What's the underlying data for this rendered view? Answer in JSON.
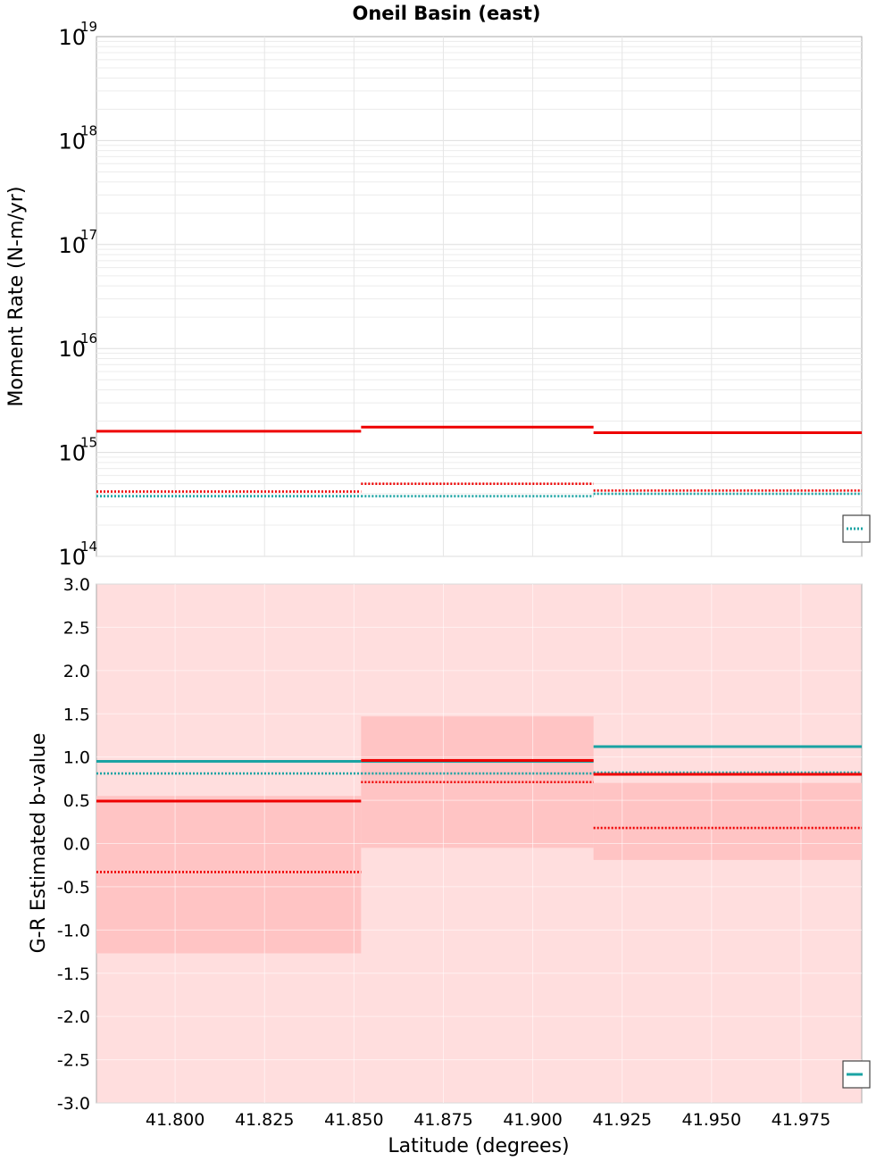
{
  "chart_data": [
    {
      "type": "line",
      "subtype": "step",
      "title": "Oneil Basin (east)",
      "ylabel": "Moment Rate (N-m/yr)",
      "xlabel": "",
      "yscale": "log",
      "xlim": [
        41.778,
        41.992
      ],
      "ylim": [
        100000000000000.0,
        1e+19
      ],
      "ytick_labels": [
        {
          "base": "10",
          "exp": "14",
          "value": 100000000000000.0
        },
        {
          "base": "10",
          "exp": "15",
          "value": 1000000000000000.0
        },
        {
          "base": "10",
          "exp": "16",
          "value": 1e+16
        },
        {
          "base": "10",
          "exp": "17",
          "value": 1e+17
        },
        {
          "base": "10",
          "exp": "18",
          "value": 1e+18
        },
        {
          "base": "10",
          "exp": "19",
          "value": 1e+19
        }
      ],
      "grid": true,
      "legend": "bottom-right (partially clipped)",
      "series": [
        {
          "name": "red solid",
          "color": "#ee0000",
          "style": "solid",
          "segments": [
            [
              41.778,
              41.852,
              1600000000000000.0
            ],
            [
              41.852,
              41.917,
              1750000000000000.0
            ],
            [
              41.917,
              41.992,
              1550000000000000.0
            ]
          ]
        },
        {
          "name": "red dotted",
          "color": "#ee0000",
          "style": "dotted",
          "segments": [
            [
              41.778,
              41.852,
              420000000000000.0
            ],
            [
              41.852,
              41.917,
              500000000000000.0
            ],
            [
              41.917,
              41.992,
              430000000000000.0
            ]
          ]
        },
        {
          "name": "teal dotted",
          "color": "#1aa3a3",
          "style": "dotted",
          "segments": [
            [
              41.778,
              41.852,
              380000000000000.0
            ],
            [
              41.852,
              41.917,
              380000000000000.0
            ],
            [
              41.917,
              41.992,
              400000000000000.0
            ]
          ]
        }
      ]
    },
    {
      "type": "line",
      "subtype": "step",
      "title": "",
      "xlabel": "Latitude (degrees)",
      "ylabel": "G-R Estimated b-value",
      "xlim": [
        41.778,
        41.992
      ],
      "ylim": [
        -3.0,
        3.0
      ],
      "xticks": [
        41.8,
        41.825,
        41.85,
        41.875,
        41.9,
        41.925,
        41.95,
        41.975
      ],
      "xtick_labels": [
        "41.800",
        "41.825",
        "41.850",
        "41.875",
        "41.900",
        "41.925",
        "41.950",
        "41.975"
      ],
      "yticks": [
        3.0,
        2.5,
        2.0,
        1.5,
        1.0,
        0.5,
        0.0,
        -0.5,
        -1.0,
        -1.5,
        -2.0,
        -2.5,
        -3.0
      ],
      "ytick_labels": [
        "3.0",
        "2.5",
        "2.0",
        "1.5",
        "1.0",
        "0.5",
        "0.0",
        "-0.5",
        "-1.0",
        "-1.5",
        "-2.0",
        "-2.5",
        "-3.0"
      ],
      "grid": true,
      "legend": "bottom-right (partially clipped)",
      "background_fill": {
        "color": "#ffdede",
        "range": [
          -3.0,
          3.0
        ]
      },
      "bands": [
        {
          "x0": 41.778,
          "x1": 41.852,
          "low": -1.27,
          "high": 0.55,
          "color": "#ffc4c4"
        },
        {
          "x0": 41.852,
          "x1": 41.917,
          "low": -0.05,
          "high": 1.47,
          "color": "#ffc4c4"
        },
        {
          "x0": 41.917,
          "x1": 41.992,
          "low": -0.19,
          "high": 0.7,
          "color": "#ffc4c4"
        }
      ],
      "series": [
        {
          "name": "teal solid",
          "color": "#1aa3a3",
          "style": "solid",
          "segments": [
            [
              41.778,
              41.852,
              0.95
            ],
            [
              41.852,
              41.917,
              0.95
            ],
            [
              41.917,
              41.992,
              1.12
            ]
          ]
        },
        {
          "name": "teal dotted",
          "color": "#1aa3a3",
          "style": "dotted",
          "segments": [
            [
              41.778,
              41.852,
              0.81
            ],
            [
              41.852,
              41.917,
              0.81
            ],
            [
              41.917,
              41.992,
              0.82
            ]
          ]
        },
        {
          "name": "red solid",
          "color": "#ee0000",
          "style": "solid",
          "segments": [
            [
              41.778,
              41.852,
              0.49
            ],
            [
              41.852,
              41.917,
              0.96
            ],
            [
              41.917,
              41.992,
              0.8
            ]
          ]
        },
        {
          "name": "red dotted",
          "color": "#ee0000",
          "style": "dotted",
          "segments": [
            [
              41.778,
              41.852,
              -0.33
            ],
            [
              41.852,
              41.917,
              0.71
            ],
            [
              41.917,
              41.992,
              0.18
            ]
          ]
        }
      ]
    }
  ]
}
